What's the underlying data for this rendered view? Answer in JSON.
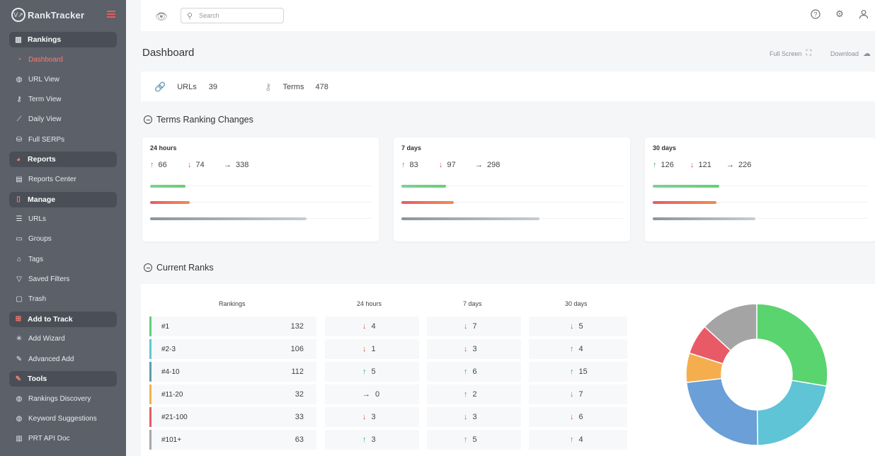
{
  "brand": {
    "name": "RankTracker",
    "logo_glyph": "V↗"
  },
  "sidebar": {
    "sections": [
      {
        "label": "Rankings",
        "icon": "bar-chart-icon",
        "items": [
          {
            "label": "Dashboard",
            "icon": "dashboard-icon",
            "active": true
          },
          {
            "label": "URL View",
            "icon": "globe-icon"
          },
          {
            "label": "Term View",
            "icon": "key-icon"
          },
          {
            "label": "Daily View",
            "icon": "line-chart-icon"
          },
          {
            "label": "Full SERPs",
            "icon": "database-icon"
          }
        ]
      },
      {
        "label": "Reports",
        "icon": "pie-chart-icon",
        "items": [
          {
            "label": "Reports Center",
            "icon": "reports-icon"
          }
        ]
      },
      {
        "label": "Manage",
        "icon": "file-icon",
        "items": [
          {
            "label": "URLs",
            "icon": "list-icon"
          },
          {
            "label": "Groups",
            "icon": "folder-icon"
          },
          {
            "label": "Tags",
            "icon": "tag-icon"
          },
          {
            "label": "Saved Filters",
            "icon": "filter-icon"
          },
          {
            "label": "Trash",
            "icon": "trash-icon"
          }
        ]
      },
      {
        "label": "Add to Track",
        "icon": "plus-square-icon",
        "items": [
          {
            "label": "Add Wizard",
            "icon": "wand-icon"
          },
          {
            "label": "Advanced Add",
            "icon": "edit-icon"
          }
        ]
      },
      {
        "label": "Tools",
        "icon": "tools-icon",
        "items": [
          {
            "label": "Rankings Discovery",
            "icon": "globe-icon"
          },
          {
            "label": "Keyword Suggestions",
            "icon": "search-globe-icon"
          },
          {
            "label": "PRT API Doc",
            "icon": "book-icon"
          }
        ]
      }
    ]
  },
  "topbar": {
    "search_placeholder": "Search"
  },
  "header": {
    "title": "Dashboard",
    "fullscreen_label": "Full Screen",
    "download_label": "Download"
  },
  "stats": {
    "urls_label": "URLs",
    "urls_value": "39",
    "terms_label": "Terms",
    "terms_value": "478"
  },
  "changes": {
    "title": "Terms Ranking Changes",
    "cards": [
      {
        "period": "24 hours",
        "up": "66",
        "down": "74",
        "flat": "338",
        "up_frac": 0.138,
        "down_frac": 0.155,
        "flat_frac": 0.707
      },
      {
        "period": "7 days",
        "up": "83",
        "down": "97",
        "flat": "298",
        "up_frac": 0.174,
        "down_frac": 0.203,
        "flat_frac": 0.623
      },
      {
        "period": "30 days",
        "up": "126",
        "down": "121",
        "flat": "226",
        "up_frac": 0.266,
        "down_frac": 0.256,
        "flat_frac": 0.478
      }
    ]
  },
  "ranks": {
    "title": "Current Ranks",
    "headers": {
      "rankings": "Rankings",
      "h24": "24 hours",
      "d7": "7 days",
      "d30": "30 days"
    },
    "rows": [
      {
        "label": "#1",
        "count": "132",
        "color": "#5fd07a",
        "h24": {
          "dir": "down",
          "v": "4"
        },
        "d7": {
          "dir": "down",
          "v": "7"
        },
        "d30": {
          "dir": "down",
          "v": "5"
        }
      },
      {
        "label": "#2-3",
        "count": "106",
        "color": "#5ec9cf",
        "h24": {
          "dir": "down",
          "v": "1"
        },
        "d7": {
          "dir": "down",
          "v": "3"
        },
        "d30": {
          "dir": "up",
          "v": "4"
        }
      },
      {
        "label": "#4-10",
        "count": "112",
        "color": "#5aa0a8",
        "h24": {
          "dir": "up",
          "v": "5"
        },
        "d7": {
          "dir": "up",
          "v": "6"
        },
        "d30": {
          "dir": "up",
          "v": "15"
        }
      },
      {
        "label": "#11-20",
        "count": "32",
        "color": "#f5b04e",
        "h24": {
          "dir": "flat",
          "v": "0"
        },
        "d7": {
          "dir": "up",
          "v": "2"
        },
        "d30": {
          "dir": "down",
          "v": "7"
        }
      },
      {
        "label": "#21-100",
        "count": "33",
        "color": "#e45d6a",
        "h24": {
          "dir": "down",
          "v": "3"
        },
        "d7": {
          "dir": "down",
          "v": "3"
        },
        "d30": {
          "dir": "down",
          "v": "6"
        }
      },
      {
        "label": "#101+",
        "count": "63",
        "color": "#a7a7a7",
        "h24": {
          "dir": "up",
          "v": "3"
        },
        "d7": {
          "dir": "up",
          "v": "5"
        },
        "d30": {
          "dir": "up",
          "v": "4"
        }
      }
    ],
    "donut": {
      "values": [
        132,
        106,
        112,
        32,
        33,
        63
      ],
      "colors": [
        "#5ad46f",
        "#5ec4d6",
        "#6a9fd8",
        "#f5ae4e",
        "#e85a66",
        "#a4a4a4"
      ]
    }
  }
}
